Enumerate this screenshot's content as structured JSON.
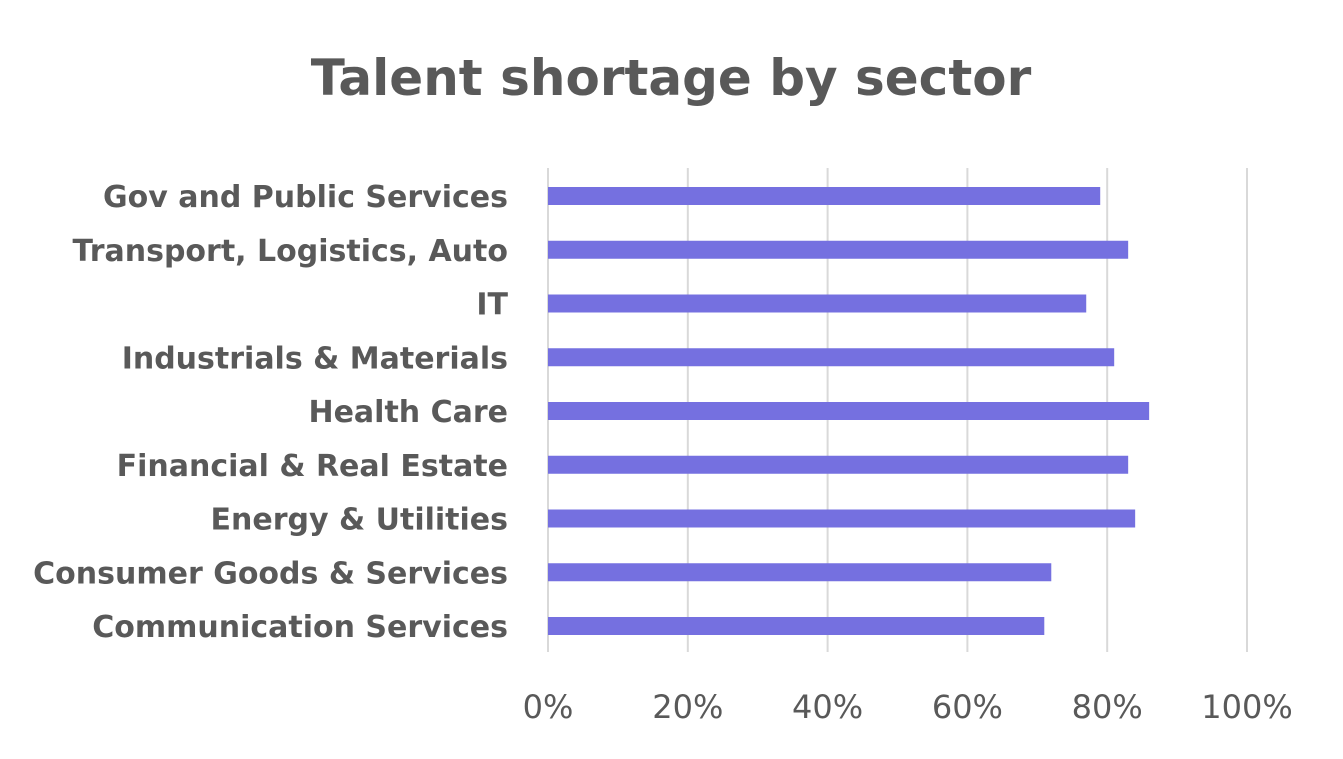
{
  "chart_data": {
    "type": "bar",
    "orientation": "horizontal",
    "title": "Talent shortage by sector",
    "xlabel": "",
    "ylabel": "",
    "categories": [
      "Gov and Public Services",
      "Transport, Logistics, Auto",
      "IT",
      "Industrials & Materials",
      "Health Care",
      "Financial & Real Estate",
      "Energy & Utilities",
      "Consumer Goods & Services",
      "Communication Services"
    ],
    "values": [
      79,
      83,
      77,
      81,
      86,
      83,
      84,
      72,
      71
    ],
    "value_unit": "%",
    "xlim": [
      0,
      100
    ],
    "x_ticks": [
      0,
      20,
      40,
      60,
      80,
      100
    ],
    "x_tick_labels": [
      "0%",
      "20%",
      "40%",
      "60%",
      "80%",
      "100%"
    ],
    "grid": "vertical",
    "legend": "none",
    "bar_color": "#7570e0"
  }
}
